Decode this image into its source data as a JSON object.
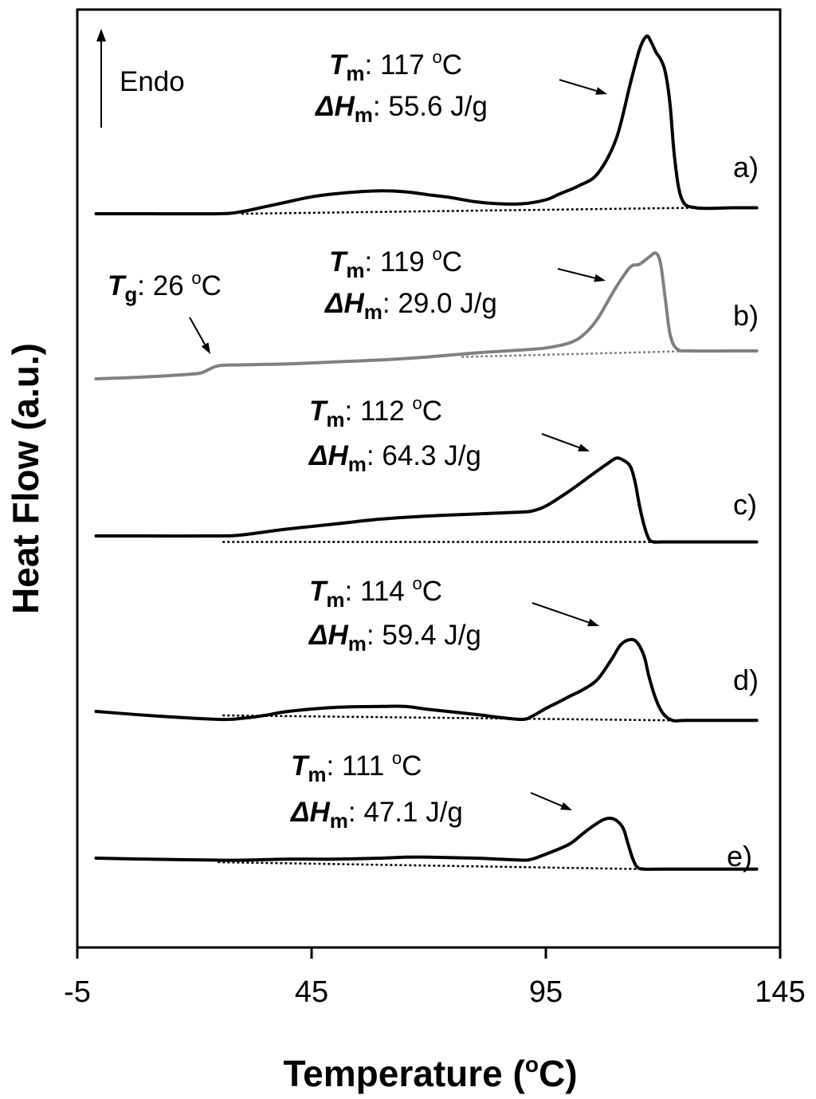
{
  "chart_data": {
    "type": "line",
    "title": "",
    "xlabel": "Temperature",
    "xlabel_unit_sup": "o",
    "xlabel_unit": "C",
    "xlabel_close": ")",
    "xlabel_open": " (",
    "ylabel": "Heat Flow (a.u.)",
    "xlim": [
      -5,
      145
    ],
    "xticks": [
      "-5",
      "45",
      "95",
      "145"
    ],
    "xtick_values": [
      -5,
      45,
      95,
      145
    ],
    "endo_label": "Endo",
    "grid": false,
    "series": [
      {
        "label": "a)",
        "color": "#000000",
        "x": [
          -1,
          10,
          25,
          30,
          35,
          40,
          45,
          50,
          55,
          60,
          65,
          70,
          75,
          80,
          85,
          90,
          95,
          98,
          102,
          106,
          110,
          113,
          115,
          116.5,
          117.5,
          118.5,
          119.5,
          120.5,
          121.5,
          122.5,
          124,
          127,
          135,
          140
        ],
        "y": [
          0.0,
          0.0,
          0.0,
          0.02,
          0.07,
          0.12,
          0.17,
          0.2,
          0.22,
          0.23,
          0.22,
          0.19,
          0.16,
          0.12,
          0.1,
          0.1,
          0.14,
          0.2,
          0.28,
          0.4,
          0.75,
          1.3,
          1.65,
          1.78,
          1.72,
          1.62,
          1.55,
          1.42,
          1.1,
          0.55,
          0.15,
          0.06,
          0.06,
          0.06
        ],
        "baseline": [
          [
            30,
            0.0
          ],
          [
            127,
            0.06
          ]
        ],
        "annotation": {
          "tm_value": ": 117 ",
          "dh_value": ": 55.6 J/g"
        }
      },
      {
        "label": "b)",
        "color": "#808080",
        "x": [
          -1,
          10,
          20,
          22,
          25,
          30,
          40,
          50,
          60,
          70,
          80,
          90,
          95,
          100,
          103,
          106,
          110,
          113,
          115,
          117,
          118.5,
          119.5,
          120.5,
          121.5,
          123,
          126,
          135,
          140
        ],
        "y": [
          0.0,
          0.02,
          0.05,
          0.07,
          0.13,
          0.14,
          0.15,
          0.17,
          0.19,
          0.22,
          0.26,
          0.29,
          0.31,
          0.36,
          0.44,
          0.6,
          0.92,
          1.12,
          1.15,
          1.22,
          1.26,
          1.15,
          0.8,
          0.45,
          0.3,
          0.28,
          0.28,
          0.28
        ],
        "baseline": [
          [
            77,
            0.22
          ],
          [
            127,
            0.28
          ]
        ],
        "annotation": {
          "tm_value": ": 119 ",
          "dh_value": ": 29.0 J/g",
          "tg_value": ": 26 "
        }
      },
      {
        "label": "c)",
        "color": "#000000",
        "x": [
          -1,
          10,
          25,
          30,
          40,
          50,
          60,
          70,
          80,
          85,
          90,
          92,
          95,
          100,
          105,
          108,
          110,
          111.5,
          113,
          114,
          115,
          116,
          117,
          118,
          120,
          125,
          135,
          140
        ],
        "y": [
          0.0,
          0.0,
          0.0,
          0.01,
          0.07,
          0.12,
          0.17,
          0.2,
          0.22,
          0.23,
          0.24,
          0.25,
          0.3,
          0.45,
          0.62,
          0.72,
          0.78,
          0.76,
          0.7,
          0.55,
          0.3,
          0.1,
          -0.03,
          -0.06,
          -0.06,
          -0.06,
          -0.06,
          -0.06
        ],
        "baseline": [
          [
            26,
            -0.06
          ],
          [
            118,
            -0.06
          ]
        ],
        "annotation": {
          "tm_value": ": 112 ",
          "dh_value": ": 64.3 J/g"
        }
      },
      {
        "label": "d)",
        "color": "#000000",
        "x": [
          -1,
          10,
          25,
          30,
          35,
          40,
          50,
          60,
          65,
          70,
          80,
          85,
          90,
          92,
          95,
          98,
          100,
          103,
          106,
          109,
          111,
          113,
          114.5,
          116,
          117,
          118.5,
          120,
          122,
          125,
          135,
          140
        ],
        "y": [
          0.0,
          -0.04,
          -0.08,
          -0.07,
          -0.04,
          0.0,
          0.04,
          0.05,
          0.05,
          0.02,
          -0.03,
          -0.06,
          -0.08,
          -0.05,
          0.03,
          0.1,
          0.15,
          0.22,
          0.32,
          0.52,
          0.67,
          0.72,
          0.69,
          0.55,
          0.35,
          0.12,
          -0.02,
          -0.09,
          -0.09,
          -0.09,
          -0.09
        ],
        "baseline": [
          [
            26,
            -0.04
          ],
          [
            122,
            -0.09
          ]
        ],
        "annotation": {
          "tm_value": ": 114 ",
          "dh_value": ": 59.4 J/g"
        }
      },
      {
        "label": "e)",
        "color": "#000000",
        "x": [
          -1,
          10,
          25,
          30,
          40,
          50,
          60,
          65,
          70,
          80,
          85,
          90,
          92,
          95,
          100,
          103,
          105,
          107,
          108.5,
          110,
          111.5,
          112.5,
          113.5,
          114.5,
          116,
          120,
          135,
          140
        ],
        "y": [
          0.0,
          -0.01,
          -0.02,
          -0.02,
          -0.01,
          -0.01,
          0.0,
          0.01,
          0.01,
          0.0,
          -0.01,
          -0.02,
          -0.01,
          0.04,
          0.14,
          0.25,
          0.32,
          0.38,
          0.4,
          0.38,
          0.3,
          0.15,
          0.0,
          -0.09,
          -0.11,
          -0.11,
          -0.11,
          -0.11
        ],
        "baseline": [
          [
            25,
            -0.04
          ],
          [
            116,
            -0.11
          ]
        ],
        "annotation": {
          "tm_value": ": 111 ",
          "dh_value": ": 47.1 J/g"
        }
      }
    ],
    "annotation_labels": {
      "tm_symbol": "T",
      "tm_sub": "m",
      "tg_symbol": "T",
      "tg_sub": "g",
      "dh_symbol": "ΔH",
      "dh_sub": "m",
      "deg_sup": "o",
      "deg_unit": "C"
    }
  }
}
